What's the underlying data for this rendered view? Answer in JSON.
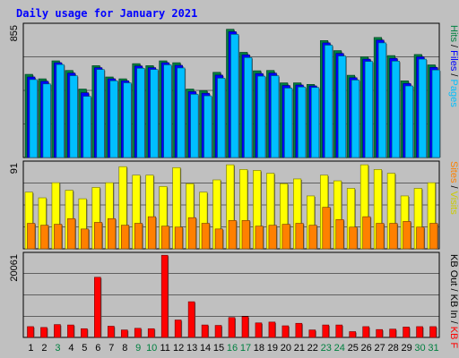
{
  "chart_data": [
    {
      "type": "bar",
      "title": "Daily usage for January 2021",
      "categories": [
        "1",
        "2",
        "3",
        "4",
        "5",
        "6",
        "7",
        "8",
        "9",
        "10",
        "11",
        "12",
        "13",
        "14",
        "15",
        "16",
        "17",
        "18",
        "19",
        "20",
        "21",
        "22",
        "23",
        "24",
        "25",
        "26",
        "27",
        "28",
        "29",
        "30",
        "31"
      ],
      "weekend_days": [
        "3",
        "9",
        "10",
        "16",
        "17",
        "23",
        "24",
        "30",
        "31"
      ],
      "ylabel_parts": [
        "Pages",
        "/",
        "Files",
        "/",
        "Hits"
      ],
      "ymax_label": "855",
      "ylim": [
        0,
        855
      ],
      "series": [
        {
          "name": "Hits",
          "color": "#008040",
          "values": [
            537,
            508,
            624,
            562,
            442,
            593,
            520,
            508,
            606,
            593,
            624,
            612,
            442,
            432,
            550,
            828,
            679,
            560,
            562,
            482,
            482,
            472,
            755,
            690,
            531,
            650,
            775,
            658,
            495,
            665,
            598
          ]
        },
        {
          "name": "Files",
          "color": "#0000ff",
          "values": [
            520,
            492,
            612,
            545,
            418,
            580,
            508,
            495,
            591,
            580,
            612,
            595,
            425,
            415,
            532,
            812,
            663,
            542,
            545,
            465,
            468,
            462,
            740,
            672,
            515,
            635,
            758,
            640,
            478,
            650,
            582
          ]
        },
        {
          "name": "Pages",
          "color": "#00bfff",
          "values": [
            503,
            475,
            600,
            528,
            395,
            568,
            495,
            482,
            576,
            568,
            598,
            578,
            408,
            398,
            512,
            795,
            645,
            525,
            528,
            448,
            455,
            452,
            725,
            655,
            500,
            620,
            740,
            622,
            462,
            635,
            565
          ]
        }
      ]
    },
    {
      "type": "bar",
      "categories": [
        "1",
        "2",
        "3",
        "4",
        "5",
        "6",
        "7",
        "8",
        "9",
        "10",
        "11",
        "12",
        "13",
        "14",
        "15",
        "16",
        "17",
        "18",
        "19",
        "20",
        "21",
        "22",
        "23",
        "24",
        "25",
        "26",
        "27",
        "28",
        "29",
        "30",
        "31"
      ],
      "ylabel_parts": [
        "Visits",
        "/",
        "Sites"
      ],
      "ymax_label": "91",
      "ylim": [
        0,
        91
      ],
      "series": [
        {
          "name": "Visits",
          "color": "#ffff00",
          "values": [
            60,
            54,
            70,
            62,
            53,
            65,
            70,
            87,
            78,
            78,
            66,
            86,
            69,
            60,
            73,
            89,
            84,
            83,
            80,
            69,
            74,
            56,
            78,
            72,
            64,
            89,
            84,
            80,
            56,
            64,
            70
          ]
        },
        {
          "name": "Sites",
          "color": "#ff8000",
          "values": [
            27,
            25,
            26,
            32,
            21,
            28,
            32,
            25,
            27,
            34,
            24,
            23,
            33,
            27,
            21,
            30,
            30,
            24,
            25,
            26,
            27,
            25,
            44,
            31,
            23,
            34,
            27,
            27,
            29,
            23,
            27
          ]
        }
      ]
    },
    {
      "type": "bar",
      "categories": [
        "1",
        "2",
        "3",
        "4",
        "5",
        "6",
        "7",
        "8",
        "9",
        "10",
        "11",
        "12",
        "13",
        "14",
        "15",
        "16",
        "17",
        "18",
        "19",
        "20",
        "21",
        "22",
        "23",
        "24",
        "25",
        "26",
        "27",
        "28",
        "29",
        "30",
        "31"
      ],
      "ylabel_parts": [
        "KB F",
        "/",
        "KB In",
        "/",
        "KB Out"
      ],
      "ymax_label": "20061",
      "ylim": [
        0,
        20061
      ],
      "series": [
        {
          "name": "KB F",
          "color": "#ff0000",
          "values": [
            2600,
            2400,
            3100,
            3000,
            2100,
            14500,
            2700,
            1800,
            2200,
            2100,
            19800,
            4200,
            8600,
            3000,
            2900,
            4800,
            5000,
            3500,
            3700,
            2800,
            3400,
            1800,
            3000,
            3000,
            1400,
            2600,
            1900,
            2000,
            2500,
            2600,
            2600
          ]
        }
      ]
    }
  ]
}
